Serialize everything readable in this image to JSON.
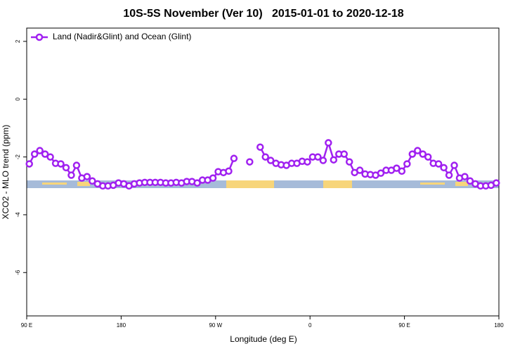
{
  "chart_data": {
    "type": "line",
    "title": "10S-5S November (Ver 10)   2015-01-01 to 2020-12-18",
    "xlabel": "Longitude (deg E)",
    "ylabel": "XCO2 - MLO trend (ppm)",
    "xlim": [
      90,
      540
    ],
    "xticks": [
      {
        "value": 90,
        "label": "90 E"
      },
      180,
      {
        "value": 270,
        "label": "90 W"
      },
      {
        "value": 360,
        "label": "0"
      },
      {
        "value": 450,
        "label": "90 E"
      },
      {
        "value": 540,
        "label": "180"
      }
    ],
    "ylim": [
      -7.5,
      2.46
    ],
    "yticks": [
      2,
      0,
      -2,
      -4,
      -6
    ],
    "legend": "top-left",
    "x": [
      92.5,
      97.5,
      102.5,
      107.5,
      112.5,
      117.5,
      122.5,
      127.5,
      132.5,
      137.5,
      142.5,
      147.5,
      152.5,
      157.5,
      162.5,
      167.5,
      172.5,
      177.5,
      182.5,
      187.5,
      192.5,
      197.5,
      202.5,
      207.5,
      212.5,
      217.5,
      222.5,
      227.5,
      232.5,
      237.5,
      242.5,
      247.5,
      252.5,
      257.5,
      262.5,
      267.5,
      272.5,
      277.5,
      282.5,
      287.5,
      292.5,
      297.5,
      302.5,
      307.5,
      312.5,
      317.5,
      322.5,
      327.5,
      332.5,
      337.5,
      342.5,
      347.5,
      352.5,
      357.5,
      362.5,
      367.5,
      372.5,
      377.5,
      382.5,
      387.5,
      392.5,
      397.5,
      402.5,
      407.5,
      412.5,
      417.5,
      422.5,
      427.5,
      432.5,
      437.5,
      442.5,
      447.5,
      452.5,
      457.5,
      462.5,
      467.5,
      472.5,
      477.5,
      482.5,
      487.5,
      492.5,
      497.5,
      502.5,
      507.5,
      512.5,
      517.5,
      522.5,
      527.5,
      532.5,
      537.5
    ],
    "series": [
      {
        "name": "Land (Nadir&Glint) and Ocean (Glint)",
        "color": "#a020f0",
        "values": [
          -2.24,
          -1.9,
          -1.78,
          -1.9,
          -2.0,
          -2.22,
          -2.24,
          -2.37,
          -2.63,
          -2.29,
          -2.73,
          -2.68,
          -2.83,
          -2.93,
          -3.0,
          -3.0,
          -2.98,
          -2.9,
          -2.93,
          -3.0,
          -2.93,
          -2.9,
          -2.88,
          -2.88,
          -2.88,
          -2.88,
          -2.9,
          -2.9,
          -2.88,
          -2.9,
          -2.85,
          -2.85,
          -2.9,
          -2.8,
          -2.8,
          -2.73,
          -2.51,
          -2.54,
          -2.49,
          -2.05,
          null,
          null,
          -2.17,
          null,
          -1.66,
          -2.0,
          -2.12,
          -2.22,
          -2.27,
          -2.29,
          -2.22,
          -2.22,
          -2.15,
          -2.17,
          -2.0,
          -2.0,
          -2.12,
          -1.51,
          -2.1,
          -1.9,
          -1.9,
          -2.17,
          -2.54,
          -2.46,
          -2.59,
          -2.61,
          -2.63,
          -2.56,
          -2.46,
          -2.46,
          -2.39,
          -2.49,
          -2.24,
          -1.9,
          -1.78,
          -1.9,
          -2.0,
          -2.22,
          -2.24,
          -2.37,
          -2.63,
          -2.29,
          -2.73,
          -2.68,
          -2.83,
          -2.93,
          -3.0,
          -3.0,
          -2.98,
          -2.9
        ]
      }
    ]
  }
}
